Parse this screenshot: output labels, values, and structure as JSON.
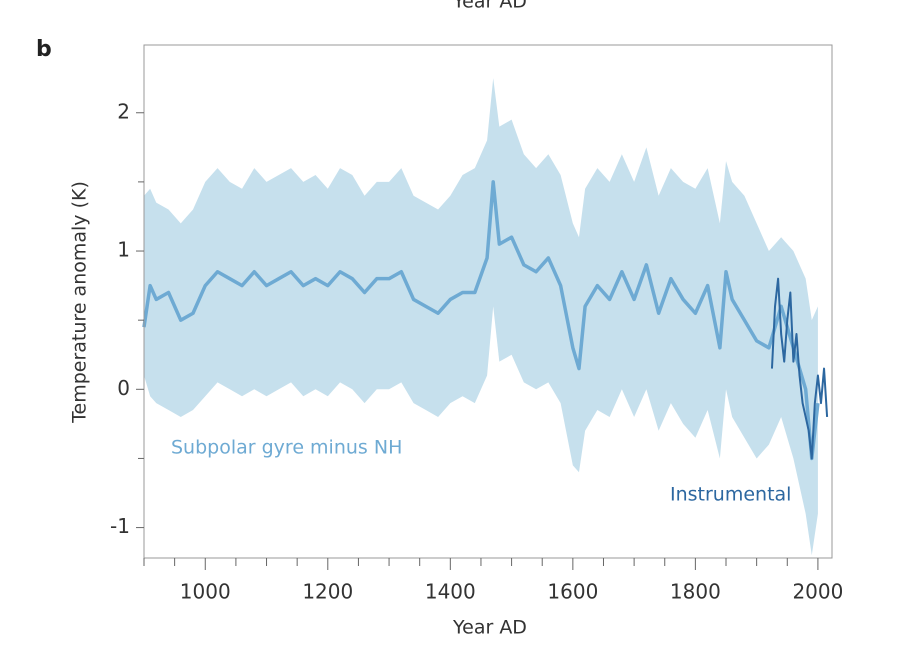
{
  "chart_data": {
    "type": "line",
    "panel_label": "b",
    "upper_fragment_label": "Year AD",
    "x_label": "Year AD",
    "y_label": "Temperature anomaly (K)",
    "xlim": [
      900,
      2023
    ],
    "ylim": [
      -1.22,
      2.49
    ],
    "xticks": [
      1000,
      1200,
      1400,
      1600,
      1800,
      2000
    ],
    "xminor_ticks": [
      900,
      950,
      1050,
      1100,
      1150,
      1250,
      1300,
      1350,
      1450,
      1500,
      1550,
      1650,
      1700,
      1750,
      1850,
      1900,
      1950
    ],
    "yticks": [
      -1,
      0,
      1,
      2
    ],
    "yminor_ticks": [
      -0.5,
      0.5,
      1.5
    ],
    "series": [
      {
        "name": "Subpolar gyre minus NH",
        "color": "#6eaad3",
        "band_color": "#c6e0ed",
        "x": [
          900,
          910,
          920,
          940,
          960,
          980,
          1000,
          1020,
          1040,
          1060,
          1080,
          1100,
          1120,
          1140,
          1160,
          1180,
          1200,
          1220,
          1240,
          1260,
          1280,
          1300,
          1320,
          1340,
          1360,
          1380,
          1400,
          1420,
          1440,
          1460,
          1470,
          1480,
          1500,
          1520,
          1540,
          1560,
          1580,
          1600,
          1610,
          1620,
          1640,
          1660,
          1680,
          1700,
          1720,
          1740,
          1760,
          1780,
          1800,
          1820,
          1840,
          1850,
          1860,
          1880,
          1900,
          1920,
          1940,
          1960,
          1980,
          1990,
          2000
        ],
        "values": [
          0.45,
          0.75,
          0.65,
          0.7,
          0.5,
          0.55,
          0.75,
          0.85,
          0.8,
          0.75,
          0.85,
          0.75,
          0.8,
          0.85,
          0.75,
          0.8,
          0.75,
          0.85,
          0.8,
          0.7,
          0.8,
          0.8,
          0.85,
          0.65,
          0.6,
          0.55,
          0.65,
          0.7,
          0.7,
          0.95,
          1.5,
          1.05,
          1.1,
          0.9,
          0.85,
          0.95,
          0.75,
          0.3,
          0.15,
          0.6,
          0.75,
          0.65,
          0.85,
          0.65,
          0.9,
          0.55,
          0.8,
          0.65,
          0.55,
          0.75,
          0.3,
          0.85,
          0.65,
          0.5,
          0.35,
          0.3,
          0.6,
          0.3,
          0.0,
          -0.5,
          -0.1
        ],
        "band_upper": [
          1.4,
          1.45,
          1.35,
          1.3,
          1.2,
          1.3,
          1.5,
          1.6,
          1.5,
          1.45,
          1.6,
          1.5,
          1.55,
          1.6,
          1.5,
          1.55,
          1.45,
          1.6,
          1.55,
          1.4,
          1.5,
          1.5,
          1.6,
          1.4,
          1.35,
          1.3,
          1.4,
          1.55,
          1.6,
          1.8,
          2.25,
          1.9,
          1.95,
          1.7,
          1.6,
          1.7,
          1.55,
          1.2,
          1.1,
          1.45,
          1.6,
          1.5,
          1.7,
          1.5,
          1.75,
          1.4,
          1.6,
          1.5,
          1.45,
          1.6,
          1.2,
          1.65,
          1.5,
          1.4,
          1.2,
          1.0,
          1.1,
          1.0,
          0.8,
          0.5,
          0.6
        ],
        "band_lower": [
          0.1,
          -0.05,
          -0.1,
          -0.15,
          -0.2,
          -0.15,
          -0.05,
          0.05,
          0.0,
          -0.05,
          0.0,
          -0.05,
          0.0,
          0.05,
          -0.05,
          0.0,
          -0.05,
          0.05,
          0.0,
          -0.1,
          0.0,
          0.0,
          0.05,
          -0.1,
          -0.15,
          -0.2,
          -0.1,
          -0.05,
          -0.1,
          0.1,
          0.6,
          0.2,
          0.25,
          0.05,
          0.0,
          0.05,
          -0.1,
          -0.55,
          -0.6,
          -0.3,
          -0.15,
          -0.2,
          0.0,
          -0.2,
          0.0,
          -0.3,
          -0.1,
          -0.25,
          -0.35,
          -0.15,
          -0.5,
          0.0,
          -0.2,
          -0.35,
          -0.5,
          -0.4,
          -0.2,
          -0.5,
          -0.9,
          -1.2,
          -0.9
        ]
      },
      {
        "name": "Instrumental",
        "color": "#2c67a0",
        "x": [
          1925,
          1930,
          1935,
          1940,
          1945,
          1950,
          1955,
          1960,
          1965,
          1970,
          1975,
          1980,
          1985,
          1990,
          1995,
          2000,
          2005,
          2010,
          2015
        ],
        "values": [
          0.15,
          0.6,
          0.8,
          0.4,
          0.2,
          0.5,
          0.7,
          0.2,
          0.4,
          0.1,
          -0.1,
          -0.2,
          -0.3,
          -0.5,
          -0.1,
          0.1,
          -0.1,
          0.15,
          -0.2
        ]
      }
    ]
  }
}
